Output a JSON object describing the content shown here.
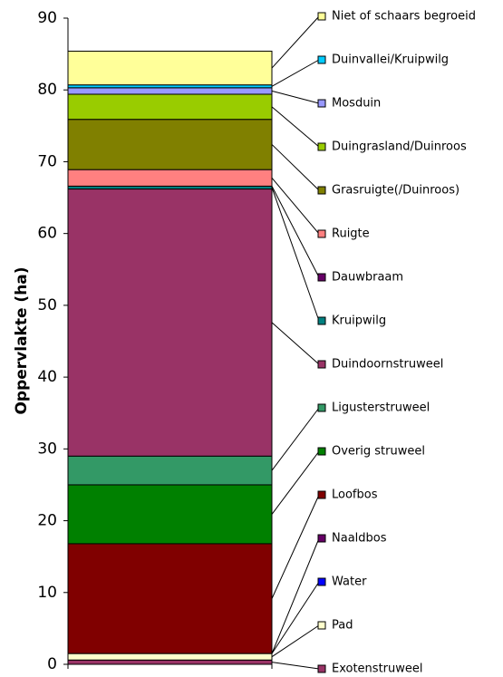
{
  "chart_data": {
    "type": "stacked_bar",
    "y_label": "Oppervlakte (ha)",
    "categories": [
      null
    ],
    "ylim": [
      0,
      90
    ],
    "yticks": [
      0,
      10,
      20,
      30,
      40,
      50,
      60,
      70,
      80,
      90
    ],
    "series": [
      {
        "name": "Exotenstruweel",
        "color": "#993366",
        "values": [
          0.6
        ]
      },
      {
        "name": "Pad",
        "color": "#ffffcc",
        "values": [
          0.9
        ]
      },
      {
        "name": "Water",
        "color": "#0000ff",
        "values": [
          0
        ]
      },
      {
        "name": "Naaldbos",
        "color": "#660066",
        "values": [
          0
        ]
      },
      {
        "name": "Loofbos",
        "color": "#800000",
        "values": [
          15.3
        ]
      },
      {
        "name": "Overig struweel",
        "color": "#008000",
        "values": [
          8.2
        ]
      },
      {
        "name": "Ligusterstruweel",
        "color": "#339966",
        "values": [
          4.0
        ]
      },
      {
        "name": "Duindoornstruweel",
        "color": "#993366",
        "values": [
          37.2
        ]
      },
      {
        "name": "Kruipwilg",
        "color": "#008080",
        "values": [
          0.4
        ]
      },
      {
        "name": "Dauwbraam",
        "color": "#660066",
        "values": [
          0
        ]
      },
      {
        "name": "Ruigte",
        "color": "#ff8080",
        "values": [
          2.3
        ]
      },
      {
        "name": "Grasruigte(/Duinroos)",
        "color": "#808000",
        "values": [
          7.0
        ]
      },
      {
        "name": "Duingrasland/Duinroos",
        "color": "#99cc00",
        "values": [
          3.5
        ]
      },
      {
        "name": "Mosduin",
        "color": "#9999ff",
        "values": [
          0.9
        ]
      },
      {
        "name": "Duinvallei/Kruipwilg",
        "color": "#00ccff",
        "values": [
          0.4
        ]
      },
      {
        "name": "Niet of schaars begroeid",
        "color": "#ffff99",
        "values": [
          4.7
        ]
      }
    ]
  }
}
